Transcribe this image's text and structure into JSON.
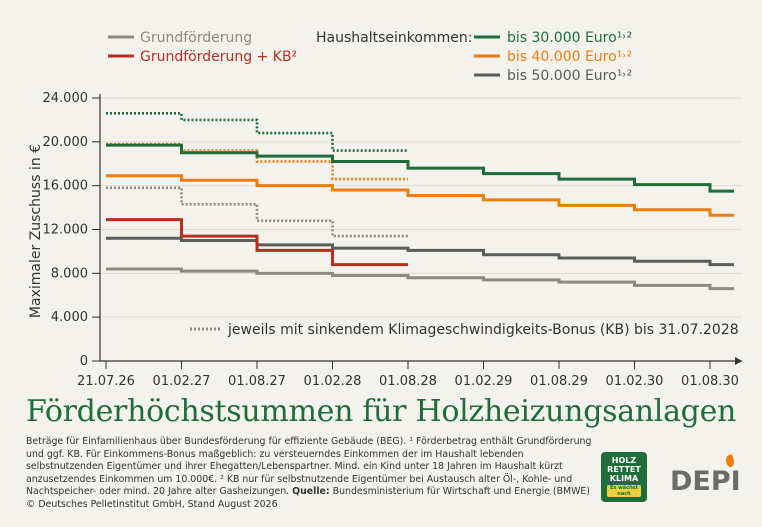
{
  "legend": {
    "basic_label": "Grundförderung",
    "basic_kb_label": "Grundförderung + KB²",
    "income_heading": "Haushaltseinkommen:",
    "income_30_label": "bis 30.000 Euro¹˒²",
    "income_40_label": "bis 40.000 Euro¹˒²",
    "income_50_label": "bis 50.000 Euro¹˒²",
    "dotted_note": "jeweils mit sinkendem Klimageschwindigkeits-Bonus (KB) bis 31.07.2028"
  },
  "colors": {
    "green": "#1f6e3a",
    "orange": "#ef7d0e",
    "dark_gray": "#5c5c5c",
    "light_gray": "#8c8a80",
    "red": "#b3311d",
    "axis": "#333333",
    "background": "#f4f2ec"
  },
  "chart_data": {
    "type": "line",
    "step": true,
    "ylabel": "Maximaler Zuschuss in €",
    "ylim": [
      0,
      24000
    ],
    "y_ticks": [
      "0",
      "4.000",
      "8.000",
      "12.000",
      "16.000",
      "20.000",
      "24.000"
    ],
    "y_tick_values": [
      0,
      4000,
      8000,
      12000,
      16000,
      20000,
      24000
    ],
    "x_ticks": [
      "21.07.26",
      "01.02.27",
      "01.08.27",
      "01.02.28",
      "01.08.28",
      "01.02.29",
      "01.08.29",
      "01.02.30",
      "01.08.30"
    ],
    "x_end_period": 9,
    "series": [
      {
        "name": "bis 30.000 Euro¹˒²",
        "style": "solid",
        "color": "#1f6e3a",
        "values": [
          19700,
          19000,
          18700,
          18200,
          17600,
          17100,
          16600,
          16100,
          15500
        ]
      },
      {
        "name": "bis 40.000 Euro¹˒²",
        "style": "solid",
        "color": "#ef7d0e",
        "values": [
          16900,
          16500,
          16000,
          15600,
          15100,
          14700,
          14200,
          13800,
          13300
        ]
      },
      {
        "name": "bis 50.000 Euro¹˒²",
        "style": "solid",
        "color": "#5c5c5c",
        "values": [
          11200,
          11000,
          10600,
          10300,
          10100,
          9700,
          9400,
          9100,
          8800
        ]
      },
      {
        "name": "Grundförderung + KB²",
        "style": "solid",
        "color": "#b3311d",
        "values": [
          12900,
          11400,
          10100,
          8800,
          null,
          null,
          null,
          null,
          null
        ]
      },
      {
        "name": "Grundförderung",
        "style": "solid",
        "color": "#8c8a80",
        "values": [
          8400,
          8200,
          8000,
          7800,
          7600,
          7400,
          7200,
          6900,
          6600
        ]
      },
      {
        "name": "bis 30.000 Euro¹˒² (KB)",
        "style": "dotted",
        "color": "#1f6e3a",
        "values": [
          22600,
          22000,
          20800,
          19200,
          null,
          null,
          null,
          null,
          null
        ]
      },
      {
        "name": "bis 40.000 Euro¹˒² (KB)",
        "style": "dotted",
        "color": "#ef7d0e",
        "values": [
          19800,
          19200,
          18200,
          16600,
          null,
          null,
          null,
          null,
          null
        ]
      },
      {
        "name": "bis 50.000 Euro¹˒² (KB)",
        "style": "dotted",
        "color": "#8c8a80",
        "values": [
          15800,
          14300,
          12800,
          11400,
          null,
          null,
          null,
          null,
          null
        ]
      }
    ]
  },
  "title": "Förderhöchstsummen für Holzheizungsanlagen",
  "footnote": {
    "text": "Beträge für Einfamilienhaus über Bundesförderung für effiziente Gebäude (BEG). ¹ Förderbetrag enthält Grundförderung und ggf. KB. Für Einkommens-Bonus maßgeblich: zu versteuerndes Einkommen der im Haushalt lebenden selbstnutzenden Eigentümer und ihrer Ehegatten/Lebenspartner. Mind. ein Kind unter 18 Jahren im Haushalt kürzt anzusetzendes Einkommen um 10.000€. ² KB nur für selbstnutzende Eigentümer bei Austausch alter Öl-, Kohle- und Nachtspeicher- oder mind. 20 Jahre alter Gasheizungen.",
    "source_label": "Quelle:",
    "source": "Bundesministerium für Wirtschaft und Energie (BMWE)",
    "copyright": "© Deutsches Pelletinstitut GmbH, Stand August 2026"
  },
  "logos": {
    "holz_text": "HOLZ RETTET KLIMA",
    "holz_badge": "Es wächst nach",
    "depi": "DEPI"
  }
}
